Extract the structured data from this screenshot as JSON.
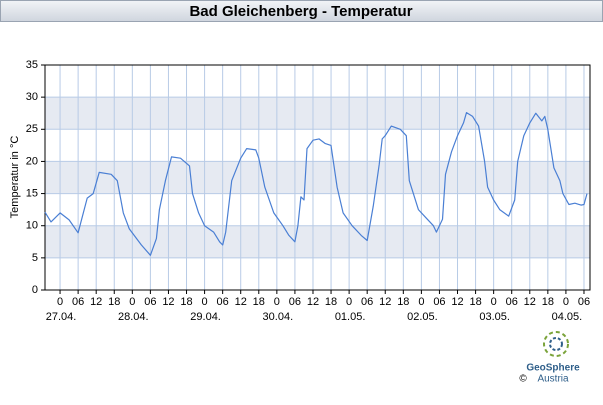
{
  "chart_data": {
    "type": "line",
    "title": "Bad Gleichenberg - Temperatur",
    "y_label": "Temperatur in °C",
    "x": [
      -5,
      -3,
      0,
      3,
      6,
      9,
      11,
      13,
      17,
      19,
      21,
      23,
      27,
      30,
      32,
      33,
      35,
      37,
      40,
      43,
      44,
      46,
      48,
      51,
      53,
      54,
      55,
      57,
      60,
      62,
      65,
      66,
      68,
      71,
      74,
      76,
      78,
      79,
      80,
      81,
      82,
      84,
      86,
      88,
      90,
      92,
      94,
      97,
      100,
      102,
      104,
      106,
      107,
      108,
      110,
      113,
      115,
      116,
      119,
      122,
      124,
      125,
      127,
      128,
      130,
      132,
      134,
      135,
      137,
      139,
      141,
      142,
      144,
      146,
      149,
      151,
      152,
      154,
      156,
      158,
      160,
      161,
      162,
      164,
      166,
      167,
      169,
      171,
      173,
      174,
      175
    ],
    "series": [
      {
        "name": "Temperatur",
        "color": "#4a7fd4",
        "values": [
          12.1,
          10.6,
          12,
          10.9,
          8.9,
          14.3,
          15,
          18.3,
          18,
          17,
          12,
          9.5,
          7,
          5.4,
          8,
          12.5,
          17,
          20.7,
          20.5,
          19.3,
          15,
          12,
          10,
          9,
          7.5,
          7,
          9,
          17,
          20.5,
          22,
          21.8,
          20.5,
          16,
          12,
          10,
          8.5,
          7.5,
          10,
          14.5,
          14,
          22,
          23.3,
          23.5,
          22.8,
          22.5,
          16,
          12,
          10,
          8.5,
          7.7,
          13,
          19.5,
          23.5,
          24,
          25.5,
          25,
          24,
          17,
          12.5,
          11,
          10,
          9,
          11,
          18,
          21.5,
          24,
          26,
          27.6,
          27,
          25.5,
          20,
          16,
          14,
          12.5,
          11.5,
          14,
          20,
          24,
          26,
          27.5,
          26.3,
          27,
          25,
          19,
          17,
          15,
          13.3,
          13.5,
          13.2,
          13.3,
          15
        ]
      }
    ],
    "xlim": [
      -5,
      176
    ],
    "xticks": [
      0,
      {
        "value": 6,
        "label": "06"
      },
      {
        "value": 12,
        "label": "12"
      },
      {
        "value": 18,
        "label": "18"
      },
      {
        "value": 24,
        "label": "0"
      },
      {
        "value": 30,
        "label": "06"
      },
      {
        "value": 36,
        "label": "12"
      },
      {
        "value": 42,
        "label": "18"
      },
      {
        "value": 48,
        "label": "0"
      },
      {
        "value": 54,
        "label": "06"
      },
      {
        "value": 60,
        "label": "12"
      },
      {
        "value": 66,
        "label": "18"
      },
      {
        "value": 72,
        "label": "0"
      },
      {
        "value": 78,
        "label": "06"
      },
      {
        "value": 84,
        "label": "12"
      },
      {
        "value": 90,
        "label": "18"
      },
      {
        "value": 96,
        "label": "0"
      },
      {
        "value": 102,
        "label": "06"
      },
      {
        "value": 108,
        "label": "12"
      },
      {
        "value": 114,
        "label": "18"
      },
      {
        "value": 120,
        "label": "0"
      },
      {
        "value": 126,
        "label": "06"
      },
      {
        "value": 132,
        "label": "12"
      },
      {
        "value": 138,
        "label": "18"
      },
      {
        "value": 144,
        "label": "0"
      },
      {
        "value": 150,
        "label": "06"
      },
      {
        "value": 156,
        "label": "12"
      },
      {
        "value": 162,
        "label": "18"
      },
      {
        "value": 168,
        "label": "0"
      },
      {
        "value": 174,
        "label": "06"
      }
    ],
    "day_labels": [
      {
        "value": 0,
        "label": "27.04."
      },
      {
        "value": 24,
        "label": "28.04."
      },
      {
        "value": 48,
        "label": "29.04."
      },
      {
        "value": 72,
        "label": "30.04."
      },
      {
        "value": 96,
        "label": "01.05."
      },
      {
        "value": 120,
        "label": "02.05."
      },
      {
        "value": 144,
        "label": "03.05."
      },
      {
        "value": 168,
        "label": "04.05."
      }
    ],
    "ylim": [
      0,
      35
    ],
    "yticks": [
      0,
      5,
      10,
      15,
      20,
      25,
      30,
      35
    ],
    "grid": true,
    "bands": true
  },
  "logo": {
    "name": "GeoSphere",
    "sub": "Austria",
    "copyright": "©"
  }
}
